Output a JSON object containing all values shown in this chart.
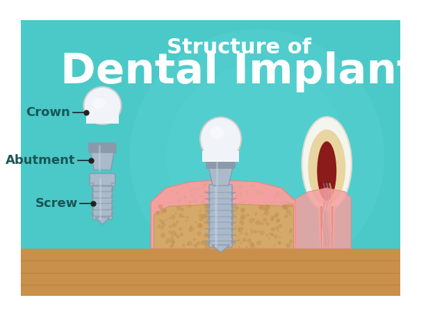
{
  "bg_color": "#4bc8c8",
  "title_line1": "Structure of",
  "title_line2": "Dental Implant",
  "title_color": "#ffffff",
  "title_line1_size": 22,
  "title_line2_size": 44,
  "label_crown": "Crown",
  "label_abutment": "Abutment",
  "label_screw": "Screw",
  "label_color": "#1a5555",
  "label_fontsize": 13,
  "circle_color": "#5dd5d5",
  "wood_color": "#c8904a",
  "gum_color": "#f4a0a0",
  "bone_color": "#d4a96a",
  "crown_white": "#f0f4f8",
  "crown_light": "#e8edf2",
  "metal_dark": "#8a9aaa",
  "metal_mid": "#aabaca",
  "metal_light": "#c8d8e8",
  "tooth_enamel": "#f5f5f0",
  "tooth_dentin": "#e8d5a0",
  "tooth_pulp": "#8b1a1a",
  "tooth_nerve_colors": [
    "#cc4444",
    "#4488cc",
    "#eeaa44"
  ]
}
